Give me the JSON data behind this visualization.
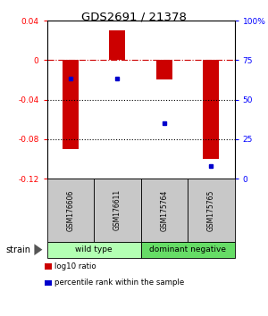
{
  "title": "GDS2691 / 21378",
  "categories": [
    "GSM176606",
    "GSM176611",
    "GSM175764",
    "GSM175765"
  ],
  "bar_values": [
    -0.09,
    0.03,
    -0.02,
    -0.1
  ],
  "percentile_values": [
    63,
    63,
    35,
    8
  ],
  "bar_color": "#cc0000",
  "dot_color": "#0000cc",
  "ylim_left": [
    -0.12,
    0.04
  ],
  "ylim_right": [
    0,
    100
  ],
  "yticks_left": [
    0.04,
    0.0,
    -0.04,
    -0.08,
    -0.12
  ],
  "yticks_right": [
    100,
    75,
    50,
    25,
    0
  ],
  "ytick_labels_left": [
    "0.04",
    "0",
    "-0.04",
    "-0.08",
    "-0.12"
  ],
  "ytick_labels_right": [
    "100%",
    "75",
    "50",
    "25",
    "0"
  ],
  "dotted_lines": [
    -0.04,
    -0.08
  ],
  "group_labels": [
    "wild type",
    "dominant negative"
  ],
  "group_ranges": [
    [
      0,
      2
    ],
    [
      2,
      4
    ]
  ],
  "group_colors": [
    "#b3ffb3",
    "#66dd66"
  ],
  "strain_label": "strain",
  "legend_items": [
    {
      "color": "#cc0000",
      "label": "log10 ratio"
    },
    {
      "color": "#0000cc",
      "label": "percentile rank within the sample"
    }
  ],
  "bar_width": 0.35,
  "background_color": "#ffffff",
  "label_area_color": "#c8c8c8"
}
